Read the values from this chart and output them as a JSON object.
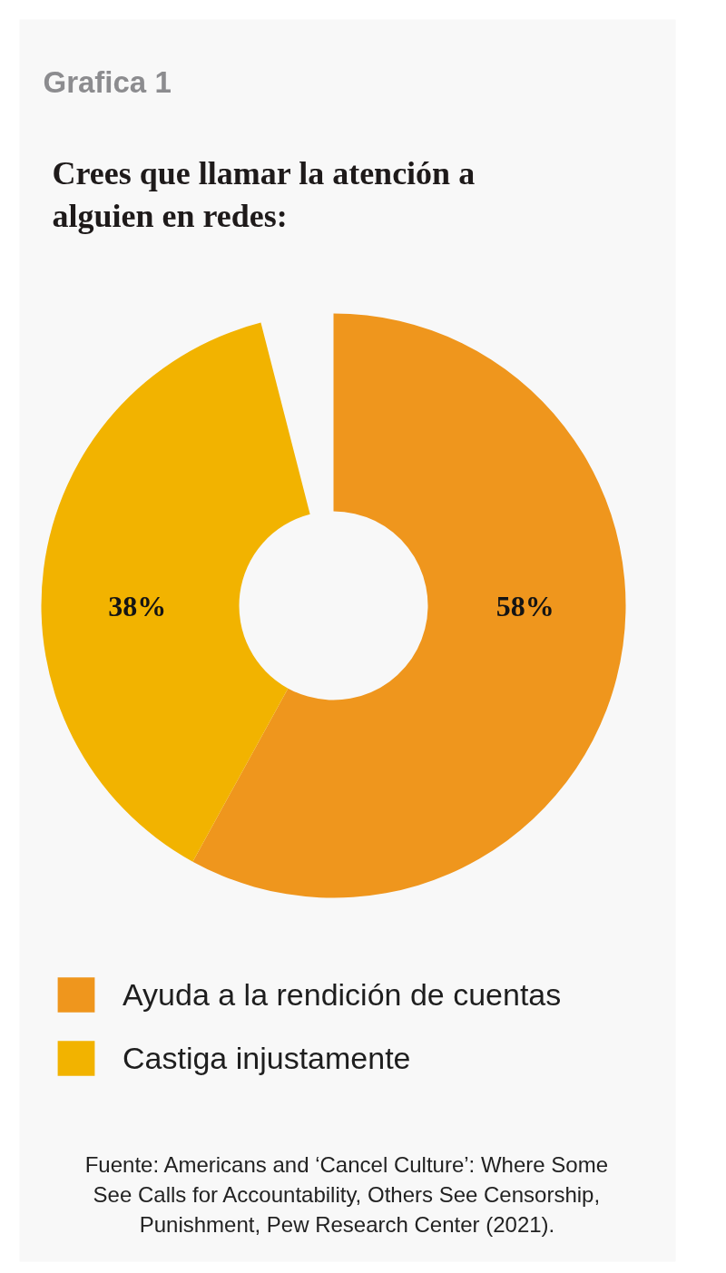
{
  "chart_data": {
    "type": "donut",
    "title": "Crees que llamar la atención a alguien en redes:",
    "categories": [
      "Ayuda a la rendición de cuentas",
      "Castiga injustamente"
    ],
    "values": [
      58,
      38
    ],
    "colors": [
      "#ef961d",
      "#f2b300"
    ],
    "value_labels": [
      "58%",
      "38%"
    ],
    "legend": "bottom",
    "annotations": [
      "Grafica 1",
      "Fuente: Americans and ‘Cancel Culture’: Where Some See Calls for Accountability, Others See Censorship, Punishment, Pew Research Center (2021)."
    ]
  }
}
